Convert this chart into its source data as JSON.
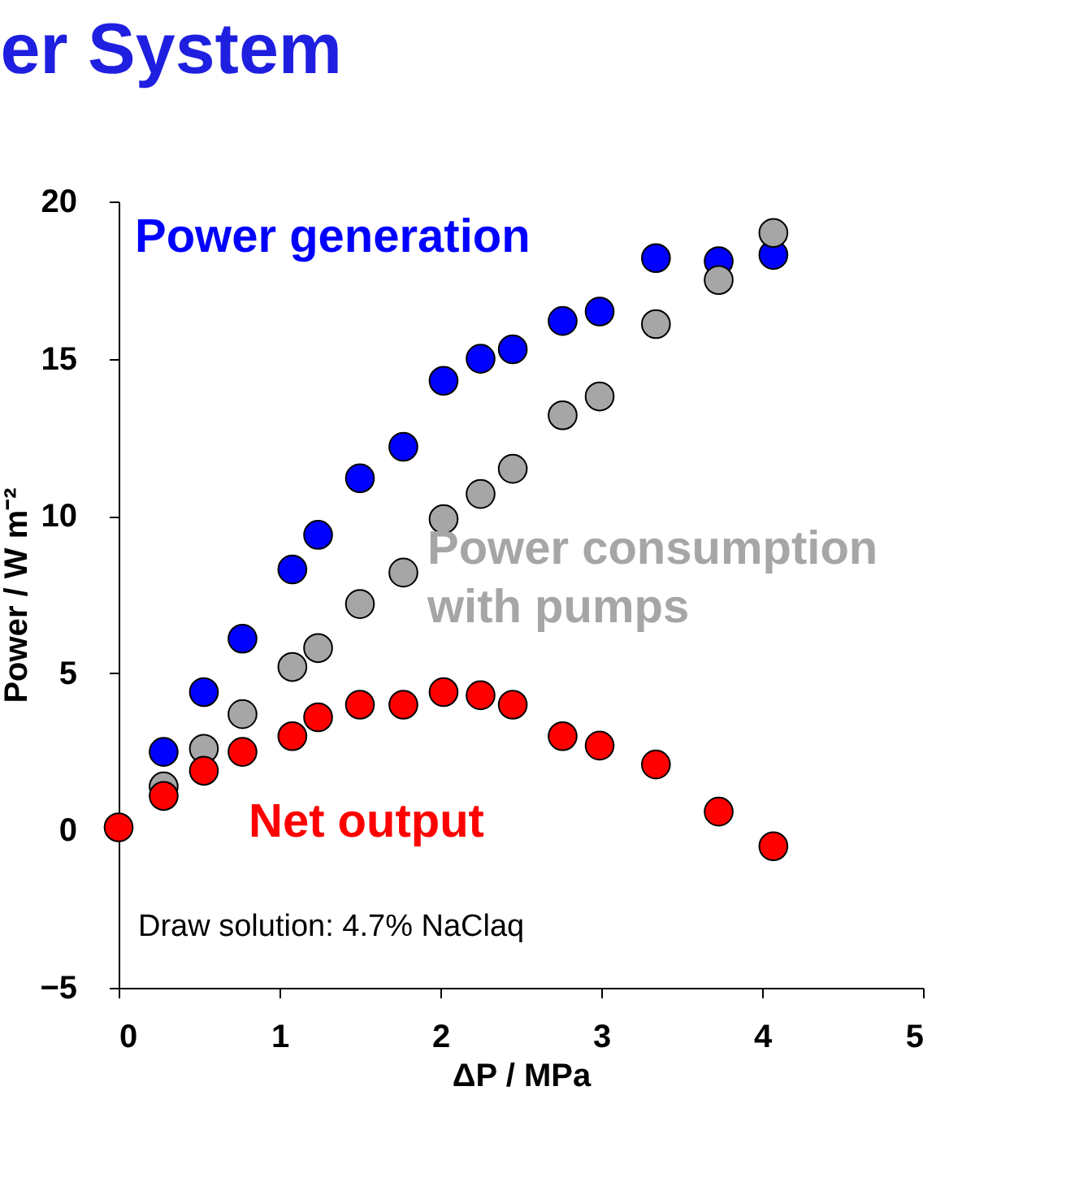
{
  "chart_data": {
    "type": "scatter",
    "title": "er System",
    "xlabel": "ΔP / MPa",
    "ylabel": "Power / W m⁻²",
    "xlim": [
      0,
      5
    ],
    "xticks": [
      0,
      1,
      2,
      3,
      4,
      5
    ],
    "ylim": [
      -5,
      20
    ],
    "yticks": [
      -5,
      0,
      5,
      10,
      15,
      20
    ],
    "grid": false,
    "marker": "circle",
    "x": [
      0,
      0.28,
      0.53,
      0.77,
      1.08,
      1.24,
      1.5,
      1.77,
      2.02,
      2.25,
      2.45,
      2.76,
      2.99,
      3.34,
      3.73,
      4.07
    ],
    "series": [
      {
        "name": "Power generation",
        "color": "#0000ff",
        "values": [
          null,
          2.5,
          4.4,
          6.1,
          8.3,
          9.4,
          11.2,
          12.2,
          14.3,
          15.0,
          15.3,
          16.2,
          16.5,
          18.2,
          18.1,
          18.3
        ]
      },
      {
        "name": "Power consumption with pumps",
        "color": "#a6a6a6",
        "values": [
          null,
          1.4,
          2.6,
          3.7,
          5.2,
          5.8,
          7.2,
          8.2,
          9.9,
          10.7,
          11.5,
          13.2,
          13.8,
          16.1,
          17.5,
          19.0
        ]
      },
      {
        "name": "Net output",
        "color": "#ff0000",
        "values": [
          0.1,
          1.1,
          1.9,
          2.5,
          3.0,
          3.6,
          4.0,
          4.0,
          4.4,
          4.3,
          4.0,
          3.0,
          2.7,
          2.1,
          0.6,
          -0.5
        ]
      }
    ],
    "annotations": [
      "Draw solution: 4.7% NaClaq"
    ]
  }
}
